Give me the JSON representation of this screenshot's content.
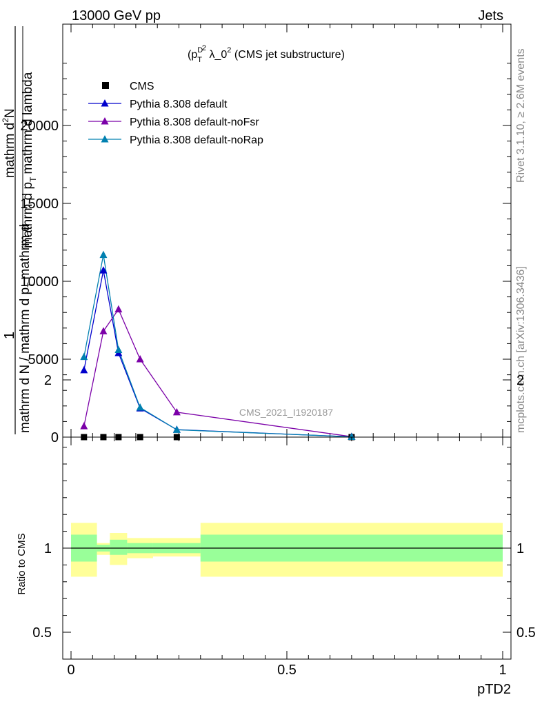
{
  "header": {
    "left": "13000 GeV pp",
    "right": "Jets"
  },
  "side_texts": {
    "rivet": "Rivet 3.1.10, ≥ 2.6M events",
    "mcplots": "mcplots.cern.ch [arXiv:1306.3436]"
  },
  "chart_data": [
    {
      "type": "line",
      "title_parts": {
        "a": "(p",
        "sup1": "D",
        "sub1": "T",
        "sup2": "2",
        "b": " λ_0",
        "sup3": "2",
        "c": " (CMS jet substructure)"
      },
      "ylabel_lines": [
        "1",
        "mathrm d N / mathrm d p",
        "T",
        "mathrm d",
        "mathrm d",
        "2",
        "N",
        "mathrm d p",
        "T",
        "mathrm d lambda"
      ],
      "watermark": "CMS_2021_I1920187",
      "xlim": [
        0,
        1
      ],
      "ylim": [
        0,
        25000
      ],
      "yticks": [
        0,
        5000,
        10000,
        15000,
        20000
      ],
      "ytick_labels": [
        "0",
        "5000",
        "10000",
        "15000",
        "20000"
      ],
      "legend_position": "top-left",
      "series": [
        {
          "name": "CMS",
          "color": "#000000",
          "marker": "square",
          "x": [
            0.03,
            0.075,
            0.11,
            0.16,
            0.245,
            0.65
          ],
          "y": [
            0,
            0,
            0,
            0,
            0,
            0
          ]
        },
        {
          "name": "Pythia 8.308 default",
          "color": "#0000cc",
          "marker": "triangle",
          "x": [
            0.03,
            0.075,
            0.11,
            0.16,
            0.245,
            0.65
          ],
          "y": [
            4300,
            10700,
            5400,
            1850,
            480,
            20
          ]
        },
        {
          "name": "Pythia 8.308 default-noFsr",
          "color": "#7b00a8",
          "marker": "triangle",
          "x": [
            0.03,
            0.075,
            0.11,
            0.16,
            0.245,
            0.65
          ],
          "y": [
            700,
            6800,
            8200,
            5000,
            1600,
            30
          ]
        },
        {
          "name": "Pythia 8.308 default-noRap",
          "color": "#0080b0",
          "marker": "triangle",
          "x": [
            0.03,
            0.075,
            0.11,
            0.16,
            0.245,
            0.65
          ],
          "y": [
            5150,
            11700,
            5600,
            1900,
            470,
            20
          ]
        }
      ]
    },
    {
      "type": "area",
      "ylabel": "Ratio to CMS",
      "xlabel": "pTD2",
      "xlim": [
        0,
        1
      ],
      "ylim": [
        0.35,
        2.3
      ],
      "yticks": [
        0.5,
        1,
        2
      ],
      "ytick_labels": [
        "0.5",
        "1",
        "2"
      ],
      "xticks": [
        0,
        0.5,
        1
      ],
      "xtick_labels": [
        "0",
        "0.5",
        "1"
      ],
      "bins": [
        {
          "x0": 0.0,
          "x1": 0.06,
          "inner": [
            0.92,
            1.08
          ],
          "outer": [
            0.83,
            1.15
          ]
        },
        {
          "x0": 0.06,
          "x1": 0.09,
          "inner": [
            0.98,
            1.02
          ],
          "outer": [
            0.96,
            1.03
          ]
        },
        {
          "x0": 0.09,
          "x1": 0.13,
          "inner": [
            0.96,
            1.05
          ],
          "outer": [
            0.9,
            1.09
          ]
        },
        {
          "x0": 0.13,
          "x1": 0.19,
          "inner": [
            0.97,
            1.03
          ],
          "outer": [
            0.94,
            1.06
          ]
        },
        {
          "x0": 0.19,
          "x1": 0.3,
          "inner": [
            0.97,
            1.03
          ],
          "outer": [
            0.95,
            1.06
          ]
        },
        {
          "x0": 0.3,
          "x1": 1.0,
          "inner": [
            0.92,
            1.08
          ],
          "outer": [
            0.83,
            1.15
          ]
        }
      ]
    }
  ]
}
